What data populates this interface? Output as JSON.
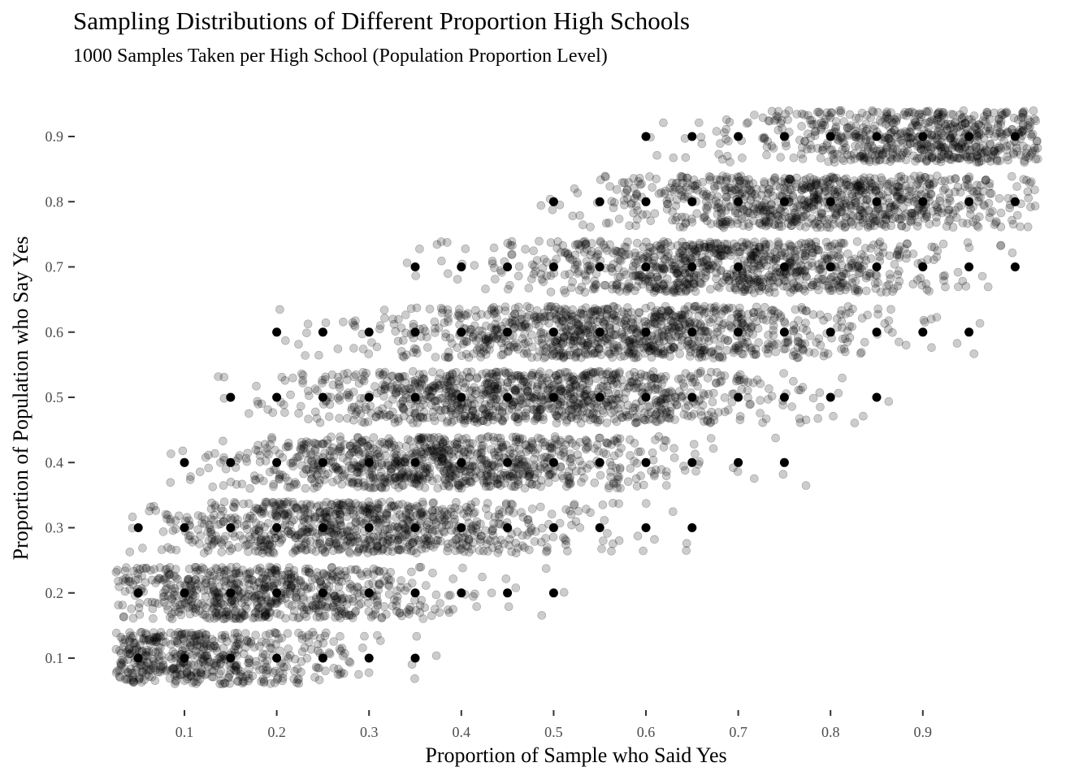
{
  "chart_data": {
    "type": "scatter",
    "title": "Sampling Distributions of Different Proportion High Schools",
    "subtitle": "1000 Samples Taken per High School (Population Proportion Level)",
    "xlabel": "Proportion of Sample who Said Yes",
    "ylabel": "Proportion of Population who Say Yes",
    "xlim": [
      0.025,
      1.0
    ],
    "ylim": [
      0.05,
      0.95
    ],
    "x_ticks": [
      "0.1",
      "0.2",
      "0.3",
      "0.4",
      "0.5",
      "0.6",
      "0.7",
      "0.8",
      "0.9"
    ],
    "y_ticks": [
      "0.1",
      "0.2",
      "0.3",
      "0.4",
      "0.5",
      "0.6",
      "0.7",
      "0.8",
      "0.9"
    ],
    "grid": false,
    "legend": "none",
    "samples_per_school": 1000,
    "point_color": "#000000",
    "jitter_point_opacity": 0.2,
    "series": [
      {
        "population": 0.1,
        "observed_x": [
          0.05,
          0.1,
          0.15,
          0.2,
          0.25,
          0.3,
          0.35
        ],
        "density": [
          1.0,
          1.0,
          0.75,
          0.45,
          0.3,
          0.06,
          0.03
        ]
      },
      {
        "population": 0.2,
        "observed_x": [
          0.05,
          0.1,
          0.15,
          0.2,
          0.25,
          0.3,
          0.35,
          0.4,
          0.45,
          0.5
        ],
        "density": [
          0.4,
          0.75,
          1.0,
          1.0,
          0.8,
          0.5,
          0.25,
          0.1,
          0.03,
          0.02
        ]
      },
      {
        "population": 0.3,
        "observed_x": [
          0.05,
          0.1,
          0.15,
          0.2,
          0.25,
          0.3,
          0.35,
          0.4,
          0.45,
          0.5,
          0.55,
          0.6,
          0.65
        ],
        "density": [
          0.06,
          0.25,
          0.5,
          0.85,
          1.0,
          1.0,
          0.85,
          0.6,
          0.4,
          0.2,
          0.1,
          0.03,
          0.02
        ]
      },
      {
        "population": 0.4,
        "observed_x": [
          0.1,
          0.15,
          0.2,
          0.25,
          0.3,
          0.35,
          0.4,
          0.45,
          0.5,
          0.55,
          0.6,
          0.65,
          0.7,
          0.75
        ],
        "density": [
          0.05,
          0.15,
          0.35,
          0.65,
          0.9,
          1.0,
          1.0,
          0.9,
          0.6,
          0.4,
          0.2,
          0.08,
          0.02,
          0.02
        ]
      },
      {
        "population": 0.5,
        "observed_x": [
          0.15,
          0.2,
          0.25,
          0.3,
          0.35,
          0.4,
          0.45,
          0.5,
          0.55,
          0.6,
          0.65,
          0.7,
          0.75,
          0.8,
          0.85
        ],
        "density": [
          0.03,
          0.1,
          0.25,
          0.45,
          0.75,
          0.9,
          1.0,
          1.0,
          0.9,
          0.75,
          0.45,
          0.25,
          0.12,
          0.05,
          0.02
        ]
      },
      {
        "population": 0.6,
        "observed_x": [
          0.2,
          0.25,
          0.3,
          0.35,
          0.4,
          0.45,
          0.5,
          0.55,
          0.6,
          0.65,
          0.7,
          0.75,
          0.8,
          0.85,
          0.9,
          0.95
        ],
        "density": [
          0.02,
          0.05,
          0.1,
          0.25,
          0.45,
          0.7,
          0.9,
          1.0,
          1.0,
          0.9,
          0.65,
          0.45,
          0.25,
          0.1,
          0.04,
          0.02
        ]
      },
      {
        "population": 0.7,
        "observed_x": [
          0.35,
          0.4,
          0.45,
          0.5,
          0.55,
          0.6,
          0.65,
          0.7,
          0.75,
          0.8,
          0.85,
          0.9,
          0.95,
          1.0
        ],
        "density": [
          0.03,
          0.06,
          0.15,
          0.3,
          0.55,
          0.8,
          1.0,
          1.0,
          0.9,
          0.7,
          0.45,
          0.2,
          0.06,
          0.02
        ]
      },
      {
        "population": 0.8,
        "observed_x": [
          0.5,
          0.55,
          0.6,
          0.65,
          0.7,
          0.75,
          0.8,
          0.85,
          0.9,
          0.95,
          1.0
        ],
        "density": [
          0.04,
          0.12,
          0.3,
          0.5,
          0.8,
          0.95,
          1.0,
          0.95,
          0.7,
          0.45,
          0.2
        ]
      },
      {
        "population": 0.9,
        "observed_x": [
          0.6,
          0.65,
          0.7,
          0.75,
          0.8,
          0.85,
          0.9,
          0.95,
          1.0
        ],
        "density": [
          0.02,
          0.04,
          0.12,
          0.3,
          0.55,
          0.85,
          1.0,
          1.0,
          0.7
        ]
      }
    ]
  }
}
